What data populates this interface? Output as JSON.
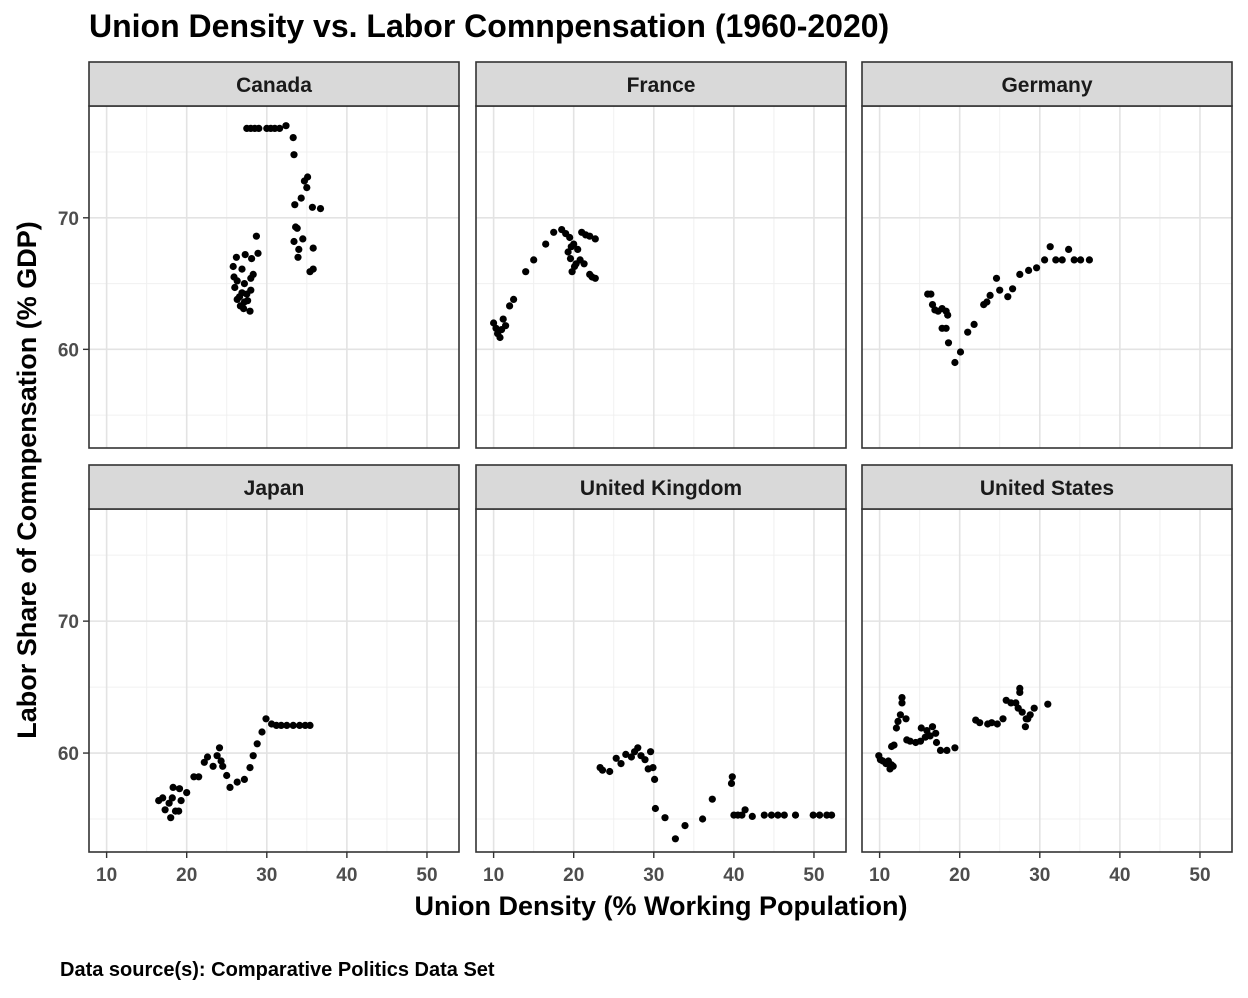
{
  "title": "Union Density vs. Labor Comnpensation (1960-2020)",
  "caption": "Data source(s): Comparative Politics Data Set",
  "chart_data": {
    "type": "scatter",
    "title": "Union Density vs. Labor Comnpensation (1960-2020)",
    "xlabel": "Union Density (% Working Population)",
    "ylabel": "Labor Share of Comnpensation (% GDP)",
    "xlim": [
      7.8,
      54.0
    ],
    "ylim": [
      52.5,
      78.5
    ],
    "x_ticks": [
      10,
      20,
      30,
      40,
      50
    ],
    "y_ticks": [
      60,
      70
    ],
    "grid": true,
    "facets": [
      {
        "name": "Canada",
        "points": [
          [
            27.5,
            76.8
          ],
          [
            28.0,
            76.8
          ],
          [
            28.5,
            76.8
          ],
          [
            29.0,
            76.8
          ],
          [
            30.0,
            76.8
          ],
          [
            30.5,
            76.8
          ],
          [
            31.0,
            76.8
          ],
          [
            31.6,
            76.8
          ],
          [
            32.4,
            77.0
          ],
          [
            33.3,
            76.1
          ],
          [
            33.4,
            74.8
          ],
          [
            35.1,
            73.1
          ],
          [
            34.7,
            72.8
          ],
          [
            35.0,
            72.3
          ],
          [
            34.3,
            71.5
          ],
          [
            35.7,
            70.8
          ],
          [
            36.7,
            70.7
          ],
          [
            33.5,
            71.0
          ],
          [
            33.6,
            69.3
          ],
          [
            33.8,
            69.2
          ],
          [
            33.4,
            68.2
          ],
          [
            34.5,
            68.4
          ],
          [
            34.0,
            67.6
          ],
          [
            35.8,
            67.7
          ],
          [
            33.9,
            67.0
          ],
          [
            35.8,
            66.1
          ],
          [
            35.4,
            65.9
          ],
          [
            28.7,
            68.6
          ],
          [
            28.9,
            67.3
          ],
          [
            26.2,
            67.0
          ],
          [
            27.3,
            67.2
          ],
          [
            28.1,
            66.9
          ],
          [
            25.8,
            66.3
          ],
          [
            26.9,
            66.1
          ],
          [
            28.3,
            65.7
          ],
          [
            28.0,
            65.4
          ],
          [
            25.9,
            65.5
          ],
          [
            26.3,
            65.2
          ],
          [
            27.2,
            65.0
          ],
          [
            27.5,
            64.2
          ],
          [
            28.0,
            64.5
          ],
          [
            26.0,
            64.7
          ],
          [
            26.6,
            64.0
          ],
          [
            26.3,
            63.8
          ],
          [
            27.6,
            63.7
          ],
          [
            26.7,
            63.3
          ],
          [
            27.1,
            63.1
          ],
          [
            27.9,
            62.9
          ],
          [
            26.9,
            64.3
          ],
          [
            27.2,
            63.6
          ]
        ]
      },
      {
        "name": "France",
        "points": [
          [
            10.0,
            62.0
          ],
          [
            10.3,
            61.6
          ],
          [
            10.5,
            61.2
          ],
          [
            10.8,
            60.9
          ],
          [
            11.0,
            61.5
          ],
          [
            11.2,
            62.3
          ],
          [
            11.5,
            61.8
          ],
          [
            12.0,
            63.3
          ],
          [
            12.5,
            63.8
          ],
          [
            14.0,
            65.9
          ],
          [
            15.0,
            66.8
          ],
          [
            16.5,
            68.0
          ],
          [
            17.5,
            68.9
          ],
          [
            18.5,
            69.1
          ],
          [
            19.0,
            68.8
          ],
          [
            19.5,
            68.5
          ],
          [
            20.0,
            68.0
          ],
          [
            20.5,
            67.6
          ],
          [
            21.0,
            68.9
          ],
          [
            21.5,
            68.7
          ],
          [
            22.0,
            68.6
          ],
          [
            22.7,
            68.4
          ],
          [
            19.3,
            67.4
          ],
          [
            19.7,
            67.8
          ],
          [
            19.6,
            66.9
          ],
          [
            20.1,
            66.3
          ],
          [
            20.3,
            66.5
          ],
          [
            19.8,
            65.9
          ],
          [
            20.8,
            66.8
          ],
          [
            21.3,
            66.5
          ],
          [
            22.0,
            65.7
          ],
          [
            22.3,
            65.5
          ],
          [
            22.7,
            65.4
          ]
        ]
      },
      {
        "name": "Germany",
        "points": [
          [
            16.0,
            64.2
          ],
          [
            16.4,
            64.2
          ],
          [
            16.6,
            63.4
          ],
          [
            16.9,
            63.0
          ],
          [
            17.3,
            62.9
          ],
          [
            17.8,
            63.1
          ],
          [
            18.3,
            62.9
          ],
          [
            18.5,
            62.6
          ],
          [
            17.8,
            61.6
          ],
          [
            18.3,
            61.6
          ],
          [
            18.6,
            60.5
          ],
          [
            19.4,
            59.0
          ],
          [
            20.1,
            59.8
          ],
          [
            21.0,
            61.3
          ],
          [
            21.8,
            61.9
          ],
          [
            23.0,
            63.4
          ],
          [
            23.4,
            63.6
          ],
          [
            23.8,
            64.1
          ],
          [
            24.6,
            65.4
          ],
          [
            25.0,
            64.5
          ],
          [
            26.0,
            64.0
          ],
          [
            26.6,
            64.6
          ],
          [
            27.5,
            65.7
          ],
          [
            28.6,
            66.0
          ],
          [
            29.6,
            66.2
          ],
          [
            30.6,
            66.8
          ],
          [
            31.3,
            67.8
          ],
          [
            32.0,
            66.8
          ],
          [
            32.8,
            66.8
          ],
          [
            33.6,
            67.6
          ],
          [
            34.3,
            66.8
          ],
          [
            35.1,
            66.8
          ],
          [
            36.2,
            66.8
          ]
        ]
      },
      {
        "name": "Japan",
        "points": [
          [
            16.5,
            56.4
          ],
          [
            17.0,
            56.6
          ],
          [
            17.3,
            55.7
          ],
          [
            17.8,
            56.2
          ],
          [
            18.0,
            55.1
          ],
          [
            18.2,
            56.6
          ],
          [
            18.3,
            57.4
          ],
          [
            18.6,
            55.6
          ],
          [
            19.0,
            55.6
          ],
          [
            19.1,
            57.3
          ],
          [
            19.3,
            56.4
          ],
          [
            20.0,
            57.0
          ],
          [
            20.9,
            58.2
          ],
          [
            21.5,
            58.2
          ],
          [
            22.2,
            59.3
          ],
          [
            22.6,
            59.7
          ],
          [
            23.3,
            59.0
          ],
          [
            23.8,
            59.8
          ],
          [
            24.1,
            60.4
          ],
          [
            24.3,
            59.4
          ],
          [
            24.5,
            59.0
          ],
          [
            25.0,
            58.3
          ],
          [
            25.4,
            57.4
          ],
          [
            26.3,
            57.8
          ],
          [
            27.2,
            58.0
          ],
          [
            27.9,
            58.9
          ],
          [
            28.3,
            59.8
          ],
          [
            28.8,
            60.7
          ],
          [
            29.4,
            61.6
          ],
          [
            29.9,
            62.6
          ],
          [
            30.6,
            62.2
          ],
          [
            31.2,
            62.1
          ],
          [
            31.8,
            62.1
          ],
          [
            32.5,
            62.1
          ],
          [
            33.3,
            62.1
          ],
          [
            34.1,
            62.1
          ],
          [
            34.8,
            62.1
          ],
          [
            35.4,
            62.1
          ]
        ]
      },
      {
        "name": "United Kingdom",
        "points": [
          [
            23.3,
            58.9
          ],
          [
            23.6,
            58.7
          ],
          [
            24.5,
            58.6
          ],
          [
            25.3,
            59.6
          ],
          [
            25.9,
            59.2
          ],
          [
            26.5,
            59.9
          ],
          [
            27.2,
            59.7
          ],
          [
            27.6,
            60.1
          ],
          [
            28.0,
            60.4
          ],
          [
            28.4,
            59.8
          ],
          [
            28.9,
            59.5
          ],
          [
            29.3,
            58.8
          ],
          [
            29.6,
            60.1
          ],
          [
            29.9,
            58.9
          ],
          [
            30.1,
            58.0
          ],
          [
            30.2,
            55.8
          ],
          [
            31.4,
            55.1
          ],
          [
            32.7,
            53.5
          ],
          [
            33.9,
            54.5
          ],
          [
            36.1,
            55.0
          ],
          [
            37.3,
            56.5
          ],
          [
            39.8,
            58.2
          ],
          [
            39.7,
            57.7
          ],
          [
            40.0,
            55.3
          ],
          [
            40.5,
            55.3
          ],
          [
            41.0,
            55.3
          ],
          [
            41.4,
            55.7
          ],
          [
            42.3,
            55.2
          ],
          [
            43.8,
            55.3
          ],
          [
            44.7,
            55.3
          ],
          [
            45.5,
            55.3
          ],
          [
            46.3,
            55.3
          ],
          [
            47.7,
            55.3
          ],
          [
            49.9,
            55.3
          ],
          [
            50.7,
            55.3
          ],
          [
            51.6,
            55.3
          ],
          [
            52.2,
            55.3
          ]
        ]
      },
      {
        "name": "United States",
        "points": [
          [
            9.9,
            59.8
          ],
          [
            10.1,
            59.5
          ],
          [
            10.4,
            59.4
          ],
          [
            10.8,
            59.2
          ],
          [
            11.1,
            59.4
          ],
          [
            11.3,
            58.8
          ],
          [
            11.5,
            59.1
          ],
          [
            11.7,
            59.0
          ],
          [
            11.5,
            60.5
          ],
          [
            11.8,
            60.6
          ],
          [
            12.1,
            61.9
          ],
          [
            12.3,
            62.4
          ],
          [
            12.6,
            62.9
          ],
          [
            12.8,
            63.8
          ],
          [
            12.8,
            64.2
          ],
          [
            13.3,
            62.6
          ],
          [
            13.4,
            61.0
          ],
          [
            13.8,
            60.9
          ],
          [
            14.5,
            60.8
          ],
          [
            15.1,
            60.9
          ],
          [
            15.2,
            61.9
          ],
          [
            15.7,
            61.2
          ],
          [
            15.9,
            61.7
          ],
          [
            16.3,
            61.3
          ],
          [
            16.6,
            62.0
          ],
          [
            17.0,
            61.5
          ],
          [
            17.1,
            60.8
          ],
          [
            17.6,
            60.2
          ],
          [
            18.4,
            60.2
          ],
          [
            19.4,
            60.4
          ],
          [
            22.0,
            62.5
          ],
          [
            22.5,
            62.3
          ],
          [
            23.5,
            62.2
          ],
          [
            24.0,
            62.3
          ],
          [
            24.7,
            62.2
          ],
          [
            25.4,
            62.6
          ],
          [
            25.8,
            64.0
          ],
          [
            26.4,
            63.8
          ],
          [
            27.0,
            63.8
          ],
          [
            27.3,
            63.4
          ],
          [
            27.5,
            64.6
          ],
          [
            27.5,
            64.9
          ],
          [
            27.8,
            63.1
          ],
          [
            28.2,
            62.0
          ],
          [
            28.3,
            62.6
          ],
          [
            28.5,
            62.6
          ],
          [
            28.8,
            62.9
          ],
          [
            29.3,
            63.4
          ],
          [
            31.0,
            63.7
          ]
        ]
      }
    ]
  }
}
